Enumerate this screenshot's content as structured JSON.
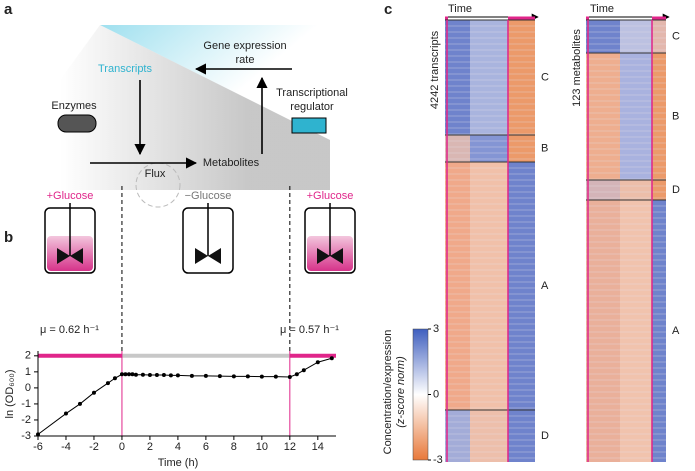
{
  "panel_labels": [
    "a",
    "b",
    "c"
  ],
  "diagram": {
    "gene_expression_rate": [
      "Gene expression",
      "rate"
    ],
    "transcripts": "Transcripts",
    "enzymes": "Enzymes",
    "transcriptional_regulator": [
      "Transcriptional",
      "regulator"
    ],
    "flux": "Flux",
    "metabolites": "Metabolites"
  },
  "conditions": [
    {
      "label": "+Glucose",
      "rate": "μ = 0.62 h⁻¹"
    },
    {
      "label": "−Glucose"
    },
    {
      "label": "+Glucose",
      "rate": "μ = 0.57 h⁻¹"
    }
  ],
  "heatmaps": [
    {
      "time_label": "Time",
      "row_label": "4242 transcripts",
      "clusters": [
        "C",
        "B",
        "A",
        "D"
      ]
    },
    {
      "time_label": "Time",
      "row_label": "123 metabolites",
      "clusters": [
        "C",
        "B",
        "D",
        "A"
      ]
    }
  ],
  "chart_data": [
    {
      "type": "line",
      "x_label": "Time (h)",
      "y_label": "ln (OD₆₀₀)",
      "x": [
        -6,
        -4,
        -3,
        -2,
        -1,
        -0.5,
        0,
        0.25,
        0.5,
        0.75,
        1,
        1.5,
        2,
        2.5,
        3,
        3.5,
        4,
        5,
        6,
        7,
        8,
        9,
        10,
        11,
        12,
        12.5,
        13,
        14,
        15
      ],
      "series": [
        {
          "color": "#000000",
          "values": [
            -2.9,
            -1.6,
            -1.0,
            -0.3,
            0.3,
            0.6,
            0.85,
            0.85,
            0.85,
            0.85,
            0.82,
            0.82,
            0.8,
            0.8,
            0.8,
            0.78,
            0.78,
            0.75,
            0.75,
            0.73,
            0.72,
            0.72,
            0.7,
            0.7,
            0.68,
            0.85,
            1.1,
            1.6,
            1.85
          ]
        }
      ],
      "phases": [
        {
          "start": -6,
          "end": 0,
          "color": "#e0258a"
        },
        {
          "start": 0,
          "end": 12,
          "color": "#c8c8c8"
        },
        {
          "start": 12,
          "end": 15.3,
          "color": "#e0258a"
        }
      ],
      "xlim": [
        -6,
        15.3
      ],
      "xticks": [
        -6,
        -4,
        -2,
        0,
        2,
        4,
        6,
        8,
        10,
        12,
        14
      ],
      "ylim": [
        -3,
        2.3
      ],
      "yticks": [
        -3,
        -2,
        -1,
        0,
        1,
        2
      ]
    },
    {
      "type": "colorbar",
      "title": [
        "Concentration/expression",
        "(z-score norm)"
      ],
      "colors": [
        "#e8793a",
        "#ffffff",
        "#3f5fbf"
      ],
      "ylim": [
        -3,
        3
      ],
      "yticks": [
        -3,
        0,
        3
      ]
    }
  ]
}
